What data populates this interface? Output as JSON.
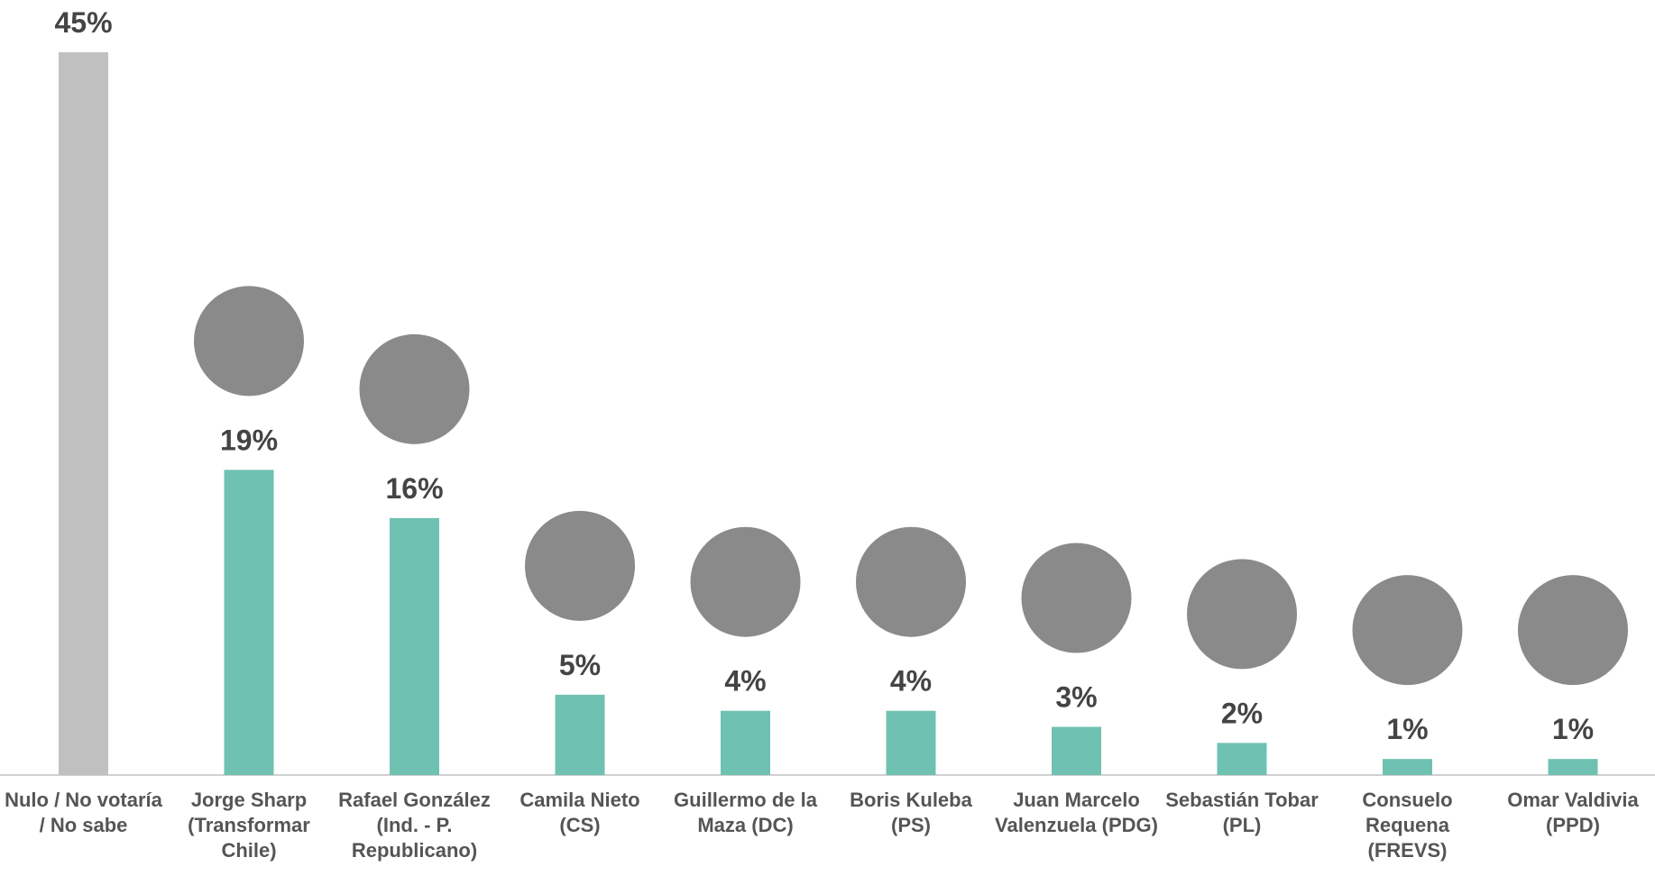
{
  "chart_data": {
    "type": "bar",
    "categories": [
      "Nulo / No votaría / No sabe",
      "Jorge Sharp (Transformar Chile)",
      "Rafael González (Ind. - P. Republicano)",
      "Camila Nieto (CS)",
      "Guillermo de la Maza (DC)",
      "Boris Kuleba (PS)",
      "Juan Marcelo Valenzuela (PDG)",
      "Sebastián Tobar (PL)",
      "Consuelo Requena (FREVS)",
      "Omar Valdivia (PPD)"
    ],
    "values": [
      45,
      19,
      16,
      5,
      4,
      4,
      3,
      2,
      1,
      1
    ],
    "value_labels": [
      "45%",
      "19%",
      "16%",
      "5%",
      "4%",
      "4%",
      "3%",
      "2%",
      "1%",
      "1%"
    ],
    "colors": [
      "#c0c0c0",
      "#6fc1b1",
      "#6fc1b1",
      "#6fc1b1",
      "#6fc1b1",
      "#6fc1b1",
      "#6fc1b1",
      "#6fc1b1",
      "#6fc1b1",
      "#6fc1b1"
    ]
  }
}
